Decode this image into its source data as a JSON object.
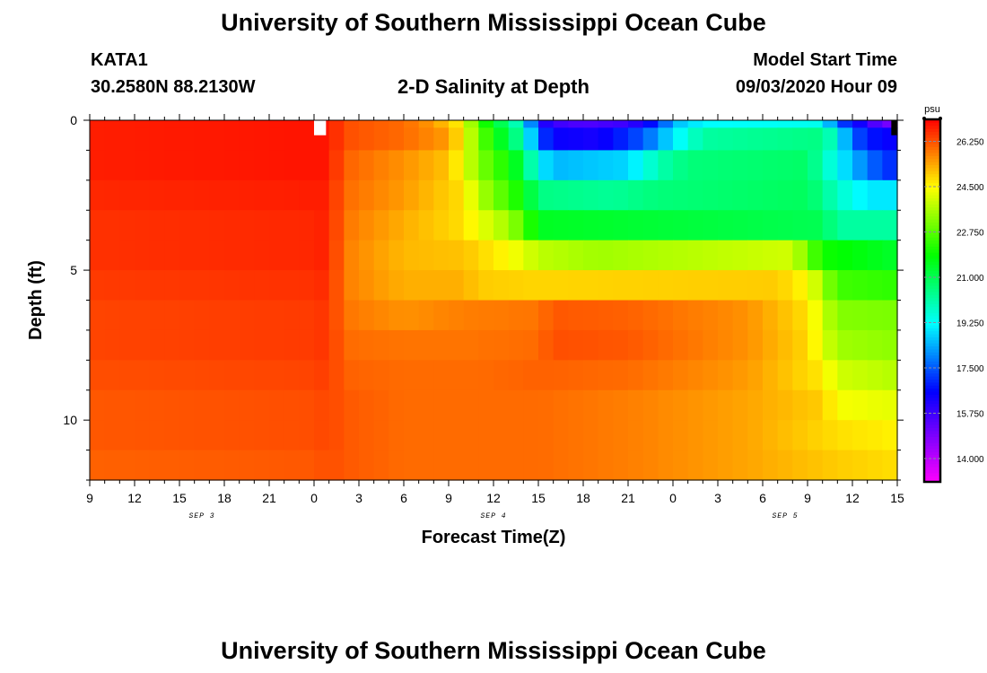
{
  "page": {
    "title_top": "University of Southern Mississippi Ocean Cube",
    "title_bottom": "University of Southern Mississippi Ocean Cube",
    "station_id": "KATA1",
    "station_coords": "30.2580N 88.2130W",
    "plot_title": "2-D Salinity at Depth",
    "model_start_label": "Model Start Time",
    "model_start_value": "09/03/2020 Hour 09"
  },
  "colors": {
    "background": "#ffffff",
    "frame": "#000000"
  },
  "chart_data": {
    "type": "heatmap",
    "title": "2-D Salinity at Depth",
    "xlabel": "Forecast Time(Z)",
    "ylabel": "Depth (ft)",
    "x_ticks": [
      "9",
      "12",
      "15",
      "18",
      "21",
      "0",
      "3",
      "6",
      "9",
      "12",
      "15",
      "18",
      "21",
      "0",
      "3",
      "6",
      "9",
      "12",
      "15"
    ],
    "x_hours_range": [
      0,
      54
    ],
    "date_labels": [
      {
        "text": "SEP 3",
        "hour": 7.5
      },
      {
        "text": "SEP 4",
        "hour": 27
      },
      {
        "text": "SEP 5",
        "hour": 46.5
      }
    ],
    "y_ticks": [
      "0",
      "5",
      "10"
    ],
    "y_tick_values": [
      0,
      5,
      10
    ],
    "ylim": [
      0,
      12
    ],
    "colorbar": {
      "unit": "psu",
      "labels": [
        "26.250",
        "24.500",
        "22.750",
        "21.000",
        "19.250",
        "17.500",
        "15.750",
        "14.000"
      ],
      "label_values": [
        26.25,
        24.5,
        22.75,
        21.0,
        19.25,
        17.5,
        15.75,
        14.0
      ],
      "range": [
        13.1,
        27.1
      ]
    },
    "cell_hours": 1,
    "depth_levels": [
      0,
      0.5,
      1.5,
      2.5,
      3.5,
      4.5,
      5.5,
      6.5,
      7.5,
      8.5,
      9.5,
      10.5,
      11.5
    ],
    "rows": [
      {
        "depth": 0,
        "keys": [
          [
            0,
            26.8
          ],
          [
            15,
            26.9
          ],
          [
            16,
            26.9
          ],
          [
            17,
            26.3
          ],
          [
            21,
            26.0
          ],
          [
            23,
            25.5
          ],
          [
            25,
            24.5
          ],
          [
            26,
            22.5
          ],
          [
            27,
            21.5
          ],
          [
            29,
            19.5
          ],
          [
            30,
            16.5
          ],
          [
            31,
            15.8
          ],
          [
            33,
            15.5
          ],
          [
            36,
            15.8
          ],
          [
            38,
            17.0
          ],
          [
            39,
            18.5
          ],
          [
            41,
            19.2
          ],
          [
            49,
            19.4
          ],
          [
            50,
            17.5
          ],
          [
            52,
            16.0
          ],
          [
            53,
            15.0
          ],
          [
            54,
            15.0
          ]
        ]
      },
      {
        "depth": 0.5,
        "keys": [
          [
            0,
            26.8
          ],
          [
            15,
            26.9
          ],
          [
            16,
            26.9
          ],
          [
            17,
            26.3
          ],
          [
            21,
            26.0
          ],
          [
            24,
            25.5
          ],
          [
            25,
            24.5
          ],
          [
            26,
            23.0
          ],
          [
            27,
            22.0
          ],
          [
            29,
            20.0
          ],
          [
            30,
            17.5
          ],
          [
            31,
            16.5
          ],
          [
            34,
            16.3
          ],
          [
            37,
            17.5
          ],
          [
            39,
            19.0
          ],
          [
            41,
            20.2
          ],
          [
            49,
            20.5
          ],
          [
            50,
            19.5
          ],
          [
            51,
            17.5
          ],
          [
            53,
            16.5
          ],
          [
            54,
            16.5
          ]
        ]
      },
      {
        "depth": 1.5,
        "keys": [
          [
            0,
            26.8
          ],
          [
            15,
            26.9
          ],
          [
            16,
            26.9
          ],
          [
            17,
            26.1
          ],
          [
            21,
            25.6
          ],
          [
            24,
            25.1
          ],
          [
            25,
            24.3
          ],
          [
            26,
            23.2
          ],
          [
            28,
            22.0
          ],
          [
            29,
            21.0
          ],
          [
            30,
            19.2
          ],
          [
            31,
            18.5
          ],
          [
            36,
            18.8
          ],
          [
            38,
            20.0
          ],
          [
            40,
            20.6
          ],
          [
            48,
            20.8
          ],
          [
            49,
            20.0
          ],
          [
            51,
            18.5
          ],
          [
            53,
            17.2
          ],
          [
            54,
            17.0
          ]
        ]
      },
      {
        "depth": 2.5,
        "keys": [
          [
            0,
            26.7
          ],
          [
            15,
            26.8
          ],
          [
            16,
            26.8
          ],
          [
            17,
            26.0
          ],
          [
            21,
            25.5
          ],
          [
            25,
            24.8
          ],
          [
            26,
            23.7
          ],
          [
            28,
            22.5
          ],
          [
            29,
            21.8
          ],
          [
            30,
            20.5
          ],
          [
            35,
            20.3
          ],
          [
            38,
            20.6
          ],
          [
            48,
            20.9
          ],
          [
            49,
            20.4
          ],
          [
            50,
            19.8
          ],
          [
            52,
            19.0
          ],
          [
            54,
            19.0
          ]
        ]
      },
      {
        "depth": 3.5,
        "keys": [
          [
            0,
            26.6
          ],
          [
            15,
            26.7
          ],
          [
            16,
            26.8
          ],
          [
            17,
            25.9
          ],
          [
            21,
            25.3
          ],
          [
            25,
            24.8
          ],
          [
            26,
            24.3
          ],
          [
            28,
            23.5
          ],
          [
            29,
            22.7
          ],
          [
            30,
            21.5
          ],
          [
            49,
            21.0
          ],
          [
            50,
            20.2
          ],
          [
            54,
            20.2
          ]
        ]
      },
      {
        "depth": 4.5,
        "keys": [
          [
            0,
            26.6
          ],
          [
            15,
            26.7
          ],
          [
            16,
            26.8
          ],
          [
            17,
            25.8
          ],
          [
            21,
            25.2
          ],
          [
            25,
            25.1
          ],
          [
            28,
            24.5
          ],
          [
            30,
            23.8
          ],
          [
            34,
            23.5
          ],
          [
            39,
            23.7
          ],
          [
            47,
            24.0
          ],
          [
            48,
            23.0
          ],
          [
            49,
            22.0
          ],
          [
            54,
            21.4
          ]
        ]
      },
      {
        "depth": 5.5,
        "keys": [
          [
            0,
            26.5
          ],
          [
            15,
            26.6
          ],
          [
            16,
            26.7
          ],
          [
            17,
            25.8
          ],
          [
            21,
            25.3
          ],
          [
            25,
            25.3
          ],
          [
            26,
            25.0
          ],
          [
            30,
            24.9
          ],
          [
            46,
            25.0
          ],
          [
            48,
            24.5
          ],
          [
            49,
            23.5
          ],
          [
            50,
            22.5
          ],
          [
            54,
            22.3
          ]
        ]
      },
      {
        "depth": 6.5,
        "keys": [
          [
            0,
            26.4
          ],
          [
            15,
            26.5
          ],
          [
            16,
            26.6
          ],
          [
            17,
            25.9
          ],
          [
            21,
            25.6
          ],
          [
            25,
            25.8
          ],
          [
            30,
            25.9
          ],
          [
            31,
            26.2
          ],
          [
            36,
            26.1
          ],
          [
            44,
            25.6
          ],
          [
            48,
            24.8
          ],
          [
            49,
            24.0
          ],
          [
            50,
            23.2
          ],
          [
            54,
            23.1
          ]
        ]
      },
      {
        "depth": 7.5,
        "keys": [
          [
            0,
            26.4
          ],
          [
            15,
            26.5
          ],
          [
            16,
            26.6
          ],
          [
            17,
            26.0
          ],
          [
            21,
            25.9
          ],
          [
            25,
            25.9
          ],
          [
            30,
            26.0
          ],
          [
            31,
            26.3
          ],
          [
            36,
            26.2
          ],
          [
            44,
            25.6
          ],
          [
            48,
            24.9
          ],
          [
            49,
            24.2
          ],
          [
            50,
            23.5
          ],
          [
            54,
            23.3
          ]
        ]
      },
      {
        "depth": 8.5,
        "keys": [
          [
            0,
            26.3
          ],
          [
            15,
            26.4
          ],
          [
            16,
            26.5
          ],
          [
            17,
            26.1
          ],
          [
            21,
            26.0
          ],
          [
            26,
            26.0
          ],
          [
            30,
            26.1
          ],
          [
            36,
            26.0
          ],
          [
            44,
            25.5
          ],
          [
            49,
            24.7
          ],
          [
            50,
            24.0
          ],
          [
            54,
            23.7
          ]
        ]
      },
      {
        "depth": 9.5,
        "keys": [
          [
            0,
            26.2
          ],
          [
            15,
            26.3
          ],
          [
            16,
            26.4
          ],
          [
            17,
            26.2
          ],
          [
            21,
            26.0
          ],
          [
            26,
            26.0
          ],
          [
            30,
            26.0
          ],
          [
            36,
            25.8
          ],
          [
            44,
            25.4
          ],
          [
            49,
            25.0
          ],
          [
            50,
            24.4
          ],
          [
            54,
            24.2
          ]
        ]
      },
      {
        "depth": 10.5,
        "keys": [
          [
            0,
            26.2
          ],
          [
            15,
            26.3
          ],
          [
            16,
            26.4
          ],
          [
            17,
            26.2
          ],
          [
            21,
            26.0
          ],
          [
            26,
            26.0
          ],
          [
            30,
            26.0
          ],
          [
            36,
            25.8
          ],
          [
            44,
            25.4
          ],
          [
            50,
            24.8
          ],
          [
            54,
            24.6
          ]
        ]
      },
      {
        "depth": 11.5,
        "keys": [
          [
            0,
            26.1
          ],
          [
            15,
            26.2
          ],
          [
            16,
            26.3
          ],
          [
            17,
            26.2
          ],
          [
            21,
            26.0
          ],
          [
            26,
            26.0
          ],
          [
            30,
            26.0
          ],
          [
            36,
            25.8
          ],
          [
            44,
            25.4
          ],
          [
            50,
            25.0
          ],
          [
            54,
            24.8
          ]
        ]
      }
    ],
    "special_cells": [
      {
        "hour": 15,
        "depth": 0,
        "value": "missing"
      },
      {
        "hour": 53,
        "depth": 0,
        "value": "missing-dark"
      }
    ]
  }
}
